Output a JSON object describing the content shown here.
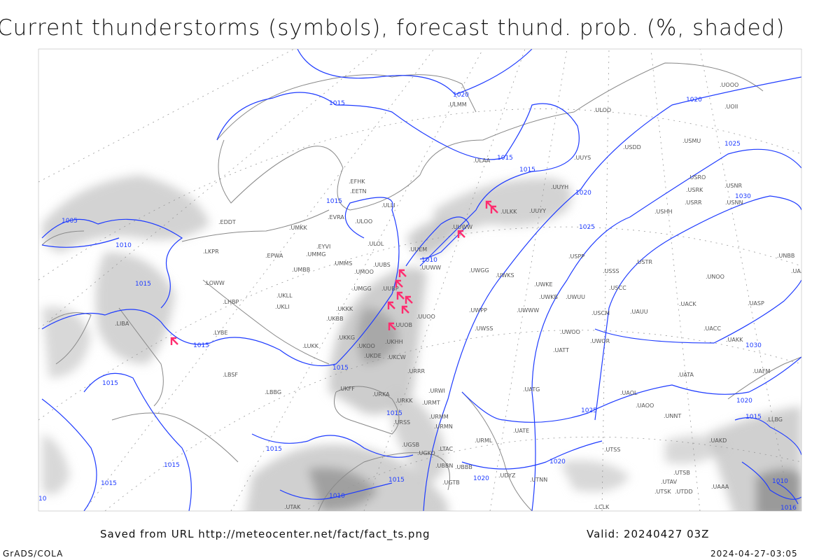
{
  "title": "Current thunderstorms (symbols), forecast thund. prob. (%, shaded)",
  "footer": {
    "saved_from": "Saved from URL http://meteocenter.net/fact/fact_ts.png",
    "valid": "Valid: 20240427 03Z",
    "software": "GrADS/COLA",
    "generated": "2024-04-27-03:05"
  },
  "colors": {
    "isobar": "#1f3cff",
    "thunderstorm_symbol": "#ff2d6f",
    "shading": "#c8c8c8",
    "station": "#555555"
  },
  "isobar_labels": [
    "1020",
    "1015",
    "1020",
    "1015",
    "1015",
    "1015",
    "1025",
    "1020",
    "1030",
    "1025",
    "1005",
    "1010",
    "1010",
    "1015",
    "1015",
    "1015",
    "1015",
    "1030",
    "1020",
    "1025",
    "1015",
    "1015",
    "1015",
    "1020",
    "1020",
    "1015",
    "1010",
    "1015",
    "1015",
    "1010",
    "1016",
    "10"
  ],
  "stations": [
    "ULMM",
    "ULOO",
    "UOII",
    "UOOO",
    "USDD",
    "USMU",
    "UUYS",
    "ULAA",
    "EFHK",
    "EETN",
    "ULLI",
    "UUYH",
    "USRO",
    "USRK",
    "USNR",
    "USRR",
    "USNN",
    "ULKK",
    "UUYY",
    "USHH",
    "EVRA",
    "ULOO",
    "EDDT",
    "UMKK",
    "UUWW",
    "ULOL",
    "EYVI",
    "UUEM",
    "EPWA",
    "UMMG",
    "UMMS",
    "UMOO",
    "UUBS",
    "UUWW",
    "UWGG",
    "UWKS",
    "USPP",
    "USSS",
    "USTR",
    "UMBB",
    "UMGG",
    "UUBP",
    "UWKE",
    "UWKB",
    "UWUU",
    "USCC",
    "UNOO",
    "UACK",
    "UASP",
    "UKLL",
    "UKLI",
    "UKKK",
    "UUOO",
    "UWPP",
    "UWWW",
    "USCM",
    "UAUU",
    "UKBB",
    "UUOB",
    "UWSS",
    "UWOO",
    "UWOR",
    "UACC",
    "UAKK",
    "LKPR",
    "LOWW",
    "LHBP",
    "LYBE",
    "LIBA",
    "UKKG",
    "UKHH",
    "UKOO",
    "UKDE",
    "UKCW",
    "URRR",
    "URWI",
    "UATG",
    "LUKK",
    "LBSF",
    "LBBG",
    "UKFF",
    "URKA",
    "URKK",
    "URMT",
    "URMM",
    "URMN",
    "URSS",
    "URML",
    "UATT",
    "UATE",
    "UGSB",
    "UGKO",
    "UBBB",
    "UDYZ",
    "UBBN",
    "UGTB",
    "LTAC",
    "LCLK",
    "UTAK",
    "UTNN",
    "UTSS",
    "UTSB",
    "UTAV",
    "UTSK",
    "UTDD",
    "UAAA",
    "UAKD",
    "UATA",
    "UAOL",
    "UAOO",
    "UNNT",
    "UNBB",
    "UAAH",
    "UAFM",
    "LLBG"
  ],
  "thunderstorm_symbol_count": 11
}
